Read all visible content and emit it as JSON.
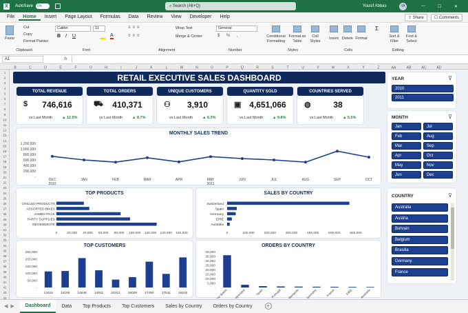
{
  "titlebar": {
    "autosave": "AutoSave",
    "autosave_state": "On",
    "search": "Search (Alt+Q)",
    "user": "Yousif Abbas",
    "initials": "YA"
  },
  "menu": [
    "File",
    "Home",
    "Insert",
    "Page Layout",
    "Formulas",
    "Data",
    "Review",
    "View",
    "Developer",
    "Help"
  ],
  "menu_active": "Home",
  "share": "Share",
  "comments": "Comments",
  "ribbon": {
    "paste": "Paste",
    "cut": "Cut",
    "copy": "Copy",
    "format_painter": "Format Painter",
    "clipboard": "Clipboard",
    "font_name": "Calibri",
    "font_size": "11",
    "font": "Font",
    "wrap": "Wrap Text",
    "merge": "Merge & Center",
    "alignment": "Alignment",
    "number_format": "General",
    "number": "Number",
    "cond_fmt": "Conditional Formatting",
    "fmt_table": "Format as Table",
    "cell_styles": "Cell Styles",
    "styles": "Styles",
    "insert": "Insert",
    "delete": "Delete",
    "format": "Format",
    "cells": "Cells",
    "sort_filter": "Sort & Filter",
    "find_select": "Find & Select",
    "editing": "Editing"
  },
  "namebox": "A1",
  "fx": "fx",
  "cols": [
    "B",
    "C",
    "D",
    "E",
    "F",
    "G",
    "H",
    "I",
    "J",
    "K",
    "L",
    "M",
    "N",
    "O",
    "P",
    "Q",
    "R",
    "S",
    "T",
    "U",
    "V",
    "W",
    "X",
    "Y",
    "Z",
    "AA",
    "AB",
    "AC",
    "AD"
  ],
  "rows": [
    "1",
    "2",
    "3",
    "4",
    "5",
    "6",
    "7",
    "8",
    "9",
    "10",
    "11",
    "12",
    "13",
    "14",
    "15",
    "16",
    "17",
    "18",
    "19",
    "20",
    "21",
    "22",
    "23",
    "24",
    "25",
    "26",
    "27",
    "28",
    "29",
    "30",
    "31",
    "32",
    "33",
    "34",
    "35",
    "36",
    "37",
    "38",
    "39",
    "40",
    "41",
    "42",
    "43",
    "44"
  ],
  "dashboard_title": "RETAIL EXECUTIVE SALES DASHBOARD",
  "kpis": [
    {
      "title": "TOTAL REVENUE",
      "value": "746,616",
      "sub": "vs Last Month",
      "change": "▲ 12.5%",
      "icon": "money-bag-icon"
    },
    {
      "title": "TOTAL ORDERS",
      "value": "410,371",
      "sub": "vs Last Month",
      "change": "▲ 8.7%",
      "icon": "cart-icon"
    },
    {
      "title": "UNIQUE CUSTOMERS",
      "value": "3,910",
      "sub": "vs Last Month",
      "change": "▲ 6.3%",
      "icon": "users-icon"
    },
    {
      "title": "QUANTITY SOLD",
      "value": "4,651,066",
      "sub": "vs Last Month",
      "change": "▲ 9.8%",
      "icon": "box-icon"
    },
    {
      "title": "COUNTRIES SERVED",
      "value": "38",
      "sub": "vs Last Month",
      "change": "▲ 5.5%",
      "icon": "globe-icon"
    }
  ],
  "slicers": {
    "year": {
      "title": "YEAR",
      "items": [
        "2010",
        "2011"
      ]
    },
    "month": {
      "title": "MONTH",
      "items": [
        "Jan",
        "Feb",
        "Mar",
        "Apr",
        "May",
        "Jun",
        "Jul",
        "Aug",
        "Sep",
        "Oct",
        "Nov",
        "Dec"
      ]
    },
    "country": {
      "title": "COUNTRY",
      "items": [
        "Australia",
        "Austria",
        "Bahrain",
        "Belgium",
        "Brasilia",
        "Germany",
        "France"
      ]
    }
  },
  "sheet_tabs": [
    "Dashboard",
    "Data",
    "Top Products",
    "Top Customers",
    "Sales by Country",
    "Orders by Country"
  ],
  "accent": "#0f2a5a",
  "bar_color": "#1d3f8f",
  "excel_green": "#1e7145",
  "chart_data": [
    {
      "type": "line",
      "title": "MONTHLY SALES TREND",
      "categories": [
        "DEC",
        "JAN",
        "FEB",
        "MAR",
        "APR",
        "MAY",
        "JUN",
        "JUL",
        "AUG",
        "SEP",
        "OCT"
      ],
      "year_labels": [
        "2010",
        "2011"
      ],
      "values": [
        730000,
        600000,
        520000,
        680000,
        530000,
        720000,
        650000,
        600000,
        520000,
        920000,
        700000
      ],
      "ylim": [
        0,
        1200000
      ],
      "yticks": [
        "1,200,000",
        "1,000,000",
        "800,000",
        "600,000",
        "400,000",
        "200,000",
        "-"
      ]
    },
    {
      "type": "bar",
      "title": "TOP PRODUCTS",
      "orientation": "horizontal",
      "categories": [
        "CHILLED PRODUCTS",
        "ASSORTED BIKES",
        "JAMBO PACK",
        "PARTY SUPPLIES",
        "REGENERATE"
      ],
      "values": [
        35000,
        42000,
        82000,
        94000,
        128000
      ],
      "xlim": [
        0,
        160000
      ],
      "xticks": [
        "0",
        "20,000",
        "40,000",
        "60,000",
        "80,000",
        "100,000",
        "120,000",
        "140,000",
        "160,000"
      ]
    },
    {
      "type": "bar",
      "title": "SALES BY COUNTRY",
      "orientation": "horizontal",
      "categories": [
        "Switzerland",
        "Spain",
        "Germany",
        "EIRE",
        "Australia"
      ],
      "values": [
        570000,
        45000,
        40000,
        22000,
        12000
      ],
      "xlim": [
        0,
        600000
      ],
      "xticks": [
        "0",
        "100,000",
        "200,000",
        "300,000",
        "400,000",
        "500,000",
        "600,000"
      ]
    },
    {
      "type": "bar",
      "title": "TOP CUSTOMERS",
      "categories": [
        "12415",
        "14156",
        "14646",
        "14911",
        "15311",
        "16029",
        "17450",
        "17511",
        "18102"
      ],
      "values": [
        112000,
        115000,
        205000,
        120000,
        55000,
        72000,
        180000,
        95000,
        210000
      ],
      "ylim": [
        0,
        250000
      ],
      "yticks": [
        "250,000",
        "200,000",
        "150,000",
        "100,000",
        "50,000",
        "-"
      ]
    },
    {
      "type": "bar",
      "title": "ORDERS BY COUNTRY",
      "categories": [
        "United States",
        "Switzerland",
        "Spain",
        "Portugal",
        "Netherlands",
        "Germany",
        "France",
        "EIRE",
        "Australia"
      ],
      "values": [
        36000,
        3000,
        1500,
        1200,
        1000,
        900,
        800,
        700,
        600
      ],
      "ylim": [
        0,
        40000
      ],
      "yticks": [
        "40,000",
        "35,000",
        "30,000",
        "25,000",
        "20,000",
        "15,000",
        "10,000",
        "5,000",
        "-"
      ]
    }
  ]
}
